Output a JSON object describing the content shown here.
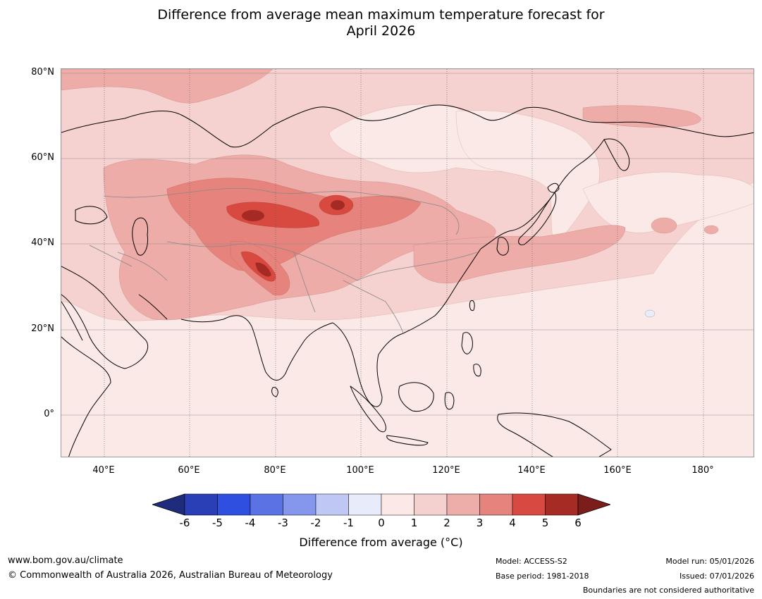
{
  "title": {
    "line1": "Difference from average mean maximum temperature forecast for",
    "line2": "April 2026"
  },
  "map": {
    "lat_labels": [
      "80°N",
      "60°N",
      "40°N",
      "20°N",
      "0°"
    ],
    "lon_labels": [
      "40°E",
      "60°E",
      "80°E",
      "100°E",
      "120°E",
      "140°E",
      "160°E",
      "180°"
    ],
    "lat_range": [
      -10,
      80
    ],
    "lon_range": [
      30,
      192
    ],
    "anomaly_colors": {
      "0_1": "#fbe9e7",
      "1_2": "#f5d2cf",
      "2_3": "#edaca7",
      "3_4": "#e5837c",
      "4_5": "#d84a40",
      "5_6": "#a52a24",
      "gt_6": "#7b1c1a",
      "neg_0": "#e8edf8"
    }
  },
  "colorbar": {
    "ticks": [
      "-6",
      "-5",
      "-4",
      "-3",
      "-2",
      "-1",
      "0",
      "1",
      "2",
      "3",
      "4",
      "5",
      "6"
    ],
    "colors": [
      "#1f2c7d",
      "#2a3eb5",
      "#2f4fe0",
      "#5b72e4",
      "#8597ec",
      "#bfc8f4",
      "#e8ebfa",
      "#fce9e7",
      "#f4d1ce",
      "#edaea9",
      "#e5837d",
      "#d84a41",
      "#a52b24",
      "#7b1d1b"
    ],
    "label": "Difference from average (°C)"
  },
  "footer": {
    "website": "www.bom.gov.au/climate",
    "copyright": "© Commonwealth of Australia 2026, Australian Bureau of Meteorology",
    "model": "Model: ACCESS-S2",
    "base_period": "Base period: 1981-2018",
    "model_run": "Model run: 05/01/2026",
    "issued": "Issued: 07/01/2026",
    "disclaimer": "Boundaries are not considered authoritative"
  }
}
